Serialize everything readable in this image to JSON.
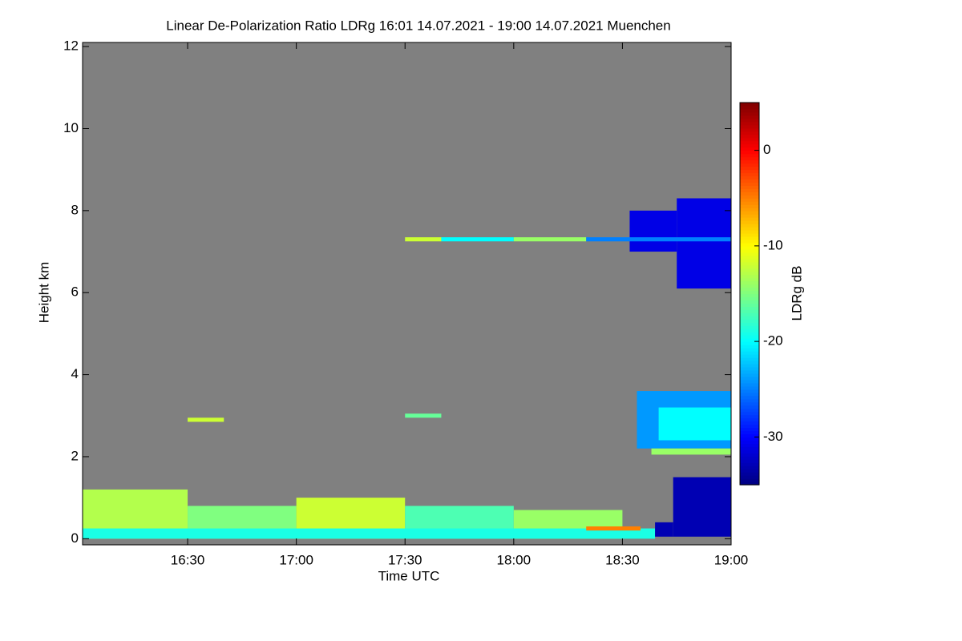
{
  "chart_data": {
    "type": "heatmap",
    "title": "Linear De-Polarization Ratio LDRg   16:01 14.07.2021 - 19:00 14.07.2021 Muenchen",
    "x_label": "Time UTC",
    "y_label": "Height km",
    "colorbar_label": "LDRg dB",
    "background": "#808080",
    "colormap": "jet",
    "xlim": [
      961,
      1140
    ],
    "xticks": [
      {
        "value": 990,
        "label": "16:30"
      },
      {
        "value": 1020,
        "label": "17:00"
      },
      {
        "value": 1050,
        "label": "17:30"
      },
      {
        "value": 1080,
        "label": "18:00"
      },
      {
        "value": 1110,
        "label": "18:30"
      },
      {
        "value": 1140,
        "label": "19:00"
      }
    ],
    "ylim": [
      -0.15,
      12.1
    ],
    "yticks": [
      0,
      2,
      4,
      6,
      8,
      10,
      12
    ],
    "clim": [
      -35,
      5
    ],
    "cticks": [
      0,
      -10,
      -20,
      -30
    ],
    "cells": [
      {
        "x0": 1112,
        "x1": 1125,
        "y0": 7.0,
        "y1": 8.0,
        "value": -31
      },
      {
        "x0": 1125,
        "x1": 1140,
        "y0": 6.1,
        "y1": 8.3,
        "value": -31
      },
      {
        "x0": 1050,
        "x1": 1060,
        "y0": 7.25,
        "y1": 7.35,
        "value": -12
      },
      {
        "x0": 1060,
        "x1": 1080,
        "y0": 7.25,
        "y1": 7.35,
        "value": -20
      },
      {
        "x0": 1080,
        "x1": 1100,
        "y0": 7.25,
        "y1": 7.35,
        "value": -14
      },
      {
        "x0": 1100,
        "x1": 1140,
        "y0": 7.25,
        "y1": 7.35,
        "value": -25
      },
      {
        "x0": 1114,
        "x1": 1140,
        "y0": 2.2,
        "y1": 3.6,
        "value": -24
      },
      {
        "x0": 1120,
        "x1": 1140,
        "y0": 2.4,
        "y1": 3.2,
        "value": -20
      },
      {
        "x0": 1118,
        "x1": 1140,
        "y0": 2.05,
        "y1": 2.2,
        "value": -14
      },
      {
        "x0": 990,
        "x1": 1000,
        "y0": 2.85,
        "y1": 2.95,
        "value": -12
      },
      {
        "x0": 1050,
        "x1": 1060,
        "y0": 2.95,
        "y1": 3.05,
        "value": -16
      },
      {
        "x0": 961,
        "x1": 990,
        "y0": 0,
        "y1": 1.2,
        "value": -13
      },
      {
        "x0": 990,
        "x1": 1020,
        "y0": 0,
        "y1": 0.8,
        "value": -15
      },
      {
        "x0": 1020,
        "x1": 1050,
        "y0": 0,
        "y1": 1.0,
        "value": -12
      },
      {
        "x0": 1050,
        "x1": 1080,
        "y0": 0,
        "y1": 0.8,
        "value": -17
      },
      {
        "x0": 1080,
        "x1": 1110,
        "y0": 0,
        "y1": 0.7,
        "value": -14
      },
      {
        "x0": 961,
        "x1": 1119,
        "y0": 0,
        "y1": 0.25,
        "value": -19
      },
      {
        "x0": 1100,
        "x1": 1115,
        "y0": 0.2,
        "y1": 0.3,
        "value": -5
      },
      {
        "x0": 1119,
        "x1": 1124,
        "y0": 0.05,
        "y1": 0.4,
        "value": -33
      },
      {
        "x0": 1124,
        "x1": 1140,
        "y0": 0.05,
        "y1": 1.5,
        "value": -33
      }
    ]
  }
}
